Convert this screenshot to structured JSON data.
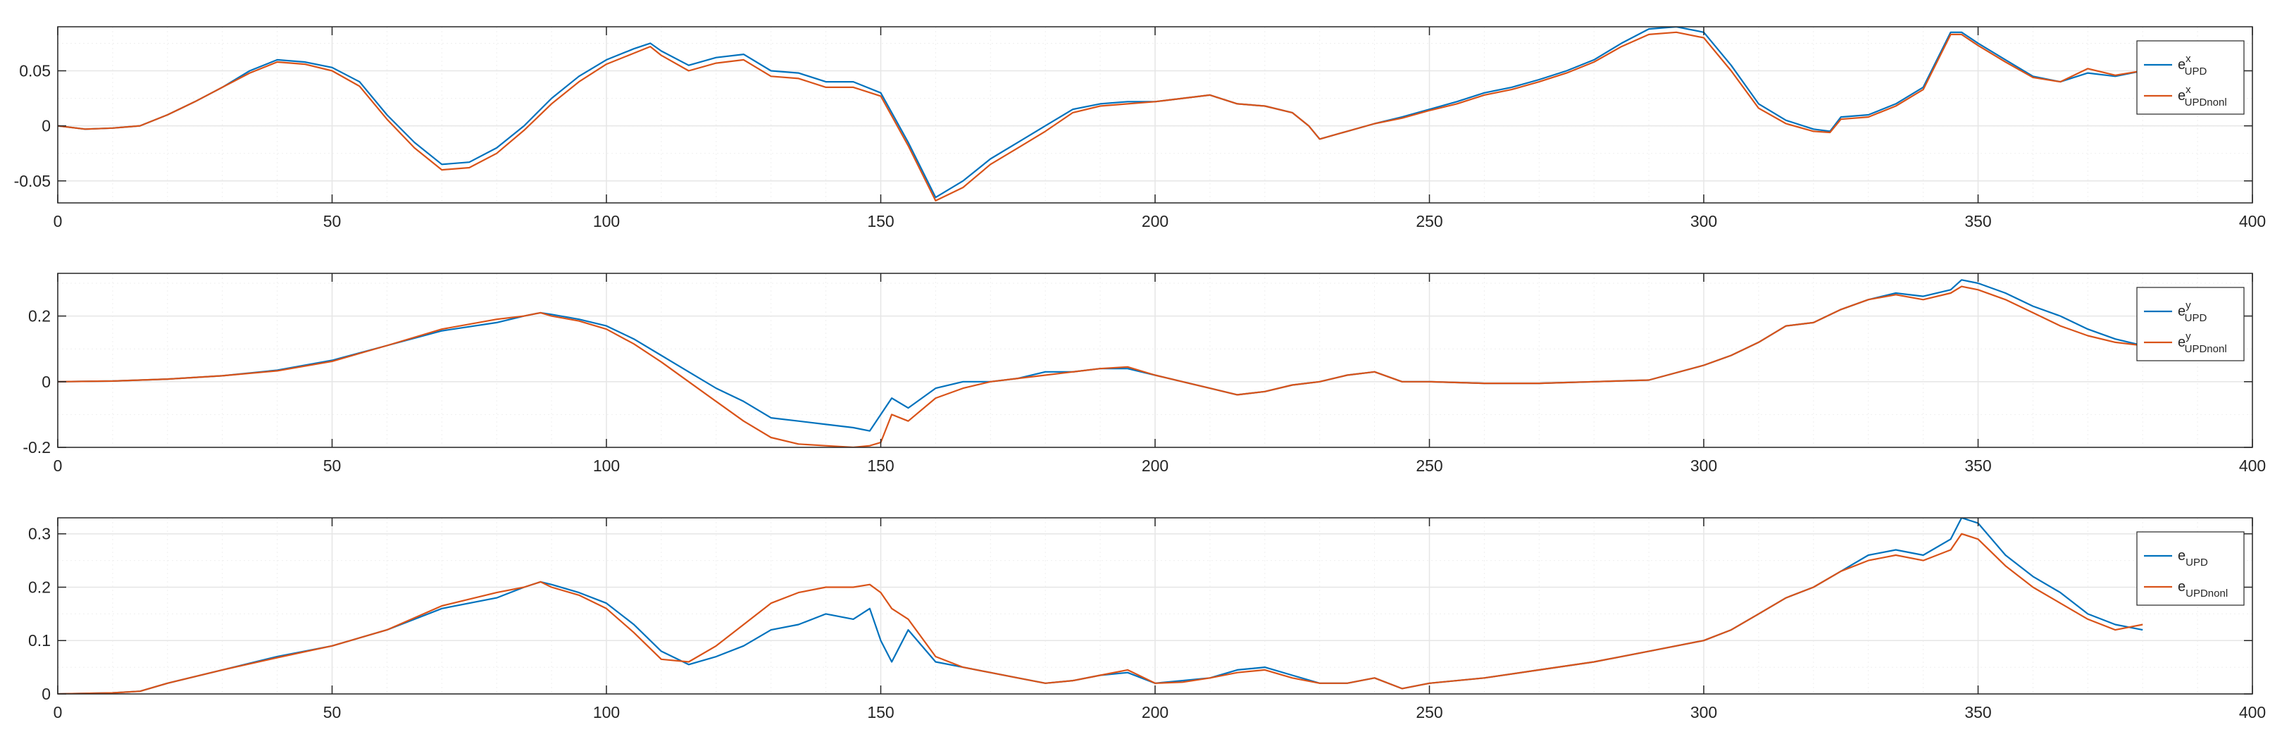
{
  "colors": {
    "series1": "#0072BD",
    "series2": "#D95319",
    "axis": "#262626",
    "grid": "#E6E6E6",
    "minor_grid": "#EFEFEF",
    "background": "#FFFFFF"
  },
  "chart_data": [
    {
      "type": "line",
      "title": "",
      "xlabel": "",
      "ylabel": "",
      "xlim": [
        0,
        400
      ],
      "ylim": [
        -0.07,
        0.09
      ],
      "xticks": [
        0,
        50,
        100,
        150,
        200,
        250,
        300,
        350,
        400
      ],
      "xtick_labels": [
        "0",
        "50",
        "100",
        "150",
        "200",
        "250",
        "300",
        "350",
        "400"
      ],
      "yticks": [
        -0.05,
        0,
        0.05
      ],
      "ytick_labels": [
        "-0.05",
        "0",
        "0.05"
      ],
      "grid": true,
      "legend_position": "top-right",
      "legend": [
        {
          "base": "e",
          "sup": "x",
          "sub": "UPD"
        },
        {
          "base": "e",
          "sup": "x",
          "sub": "UPDnonl"
        }
      ],
      "series": [
        {
          "x": [
            0,
            5,
            10,
            15,
            20,
            25,
            30,
            35,
            40,
            45,
            50,
            55,
            60,
            65,
            70,
            75,
            80,
            85,
            90,
            95,
            100,
            105,
            108,
            110,
            115,
            120,
            125,
            130,
            135,
            140,
            145,
            150,
            155,
            160,
            165,
            170,
            175,
            180,
            185,
            190,
            195,
            200,
            205,
            210,
            215,
            220,
            225,
            228,
            230,
            235,
            240,
            245,
            250,
            255,
            260,
            265,
            270,
            275,
            280,
            285,
            290,
            295,
            300,
            305,
            310,
            315,
            320,
            323,
            325,
            330,
            335,
            340,
            345,
            347,
            350,
            355,
            360,
            365,
            370,
            375,
            380
          ],
          "y": [
            0.0,
            -0.003,
            -0.002,
            0.0,
            0.01,
            0.022,
            0.035,
            0.05,
            0.06,
            0.058,
            0.053,
            0.04,
            0.01,
            -0.015,
            -0.035,
            -0.033,
            -0.02,
            0.0,
            0.025,
            0.045,
            0.06,
            0.07,
            0.075,
            0.068,
            0.055,
            0.062,
            0.065,
            0.05,
            0.048,
            0.04,
            0.04,
            0.03,
            -0.015,
            -0.065,
            -0.05,
            -0.03,
            -0.015,
            0.0,
            0.015,
            0.02,
            0.022,
            0.022,
            0.025,
            0.028,
            0.02,
            0.018,
            0.012,
            0.0,
            -0.012,
            -0.005,
            0.002,
            0.008,
            0.015,
            0.022,
            0.03,
            0.035,
            0.042,
            0.05,
            0.06,
            0.075,
            0.088,
            0.09,
            0.085,
            0.055,
            0.02,
            0.005,
            -0.003,
            -0.005,
            0.008,
            0.01,
            0.02,
            0.035,
            0.085,
            0.085,
            0.075,
            0.06,
            0.045,
            0.04,
            0.048,
            0.045,
            0.05
          ]
        },
        {
          "x": [
            0,
            5,
            10,
            15,
            20,
            25,
            30,
            35,
            40,
            45,
            50,
            55,
            60,
            65,
            70,
            75,
            80,
            85,
            90,
            95,
            100,
            105,
            108,
            110,
            115,
            120,
            125,
            130,
            135,
            140,
            145,
            150,
            155,
            160,
            165,
            170,
            175,
            180,
            185,
            190,
            195,
            200,
            205,
            210,
            215,
            220,
            225,
            228,
            230,
            235,
            240,
            245,
            250,
            255,
            260,
            265,
            270,
            275,
            280,
            285,
            290,
            295,
            300,
            305,
            310,
            315,
            320,
            323,
            325,
            330,
            335,
            340,
            345,
            347,
            350,
            355,
            360,
            365,
            370,
            375,
            380
          ],
          "y": [
            0.0,
            -0.003,
            -0.002,
            0.0,
            0.01,
            0.022,
            0.035,
            0.048,
            0.058,
            0.056,
            0.05,
            0.036,
            0.006,
            -0.02,
            -0.04,
            -0.038,
            -0.025,
            -0.004,
            0.02,
            0.04,
            0.056,
            0.066,
            0.072,
            0.064,
            0.05,
            0.057,
            0.06,
            0.045,
            0.043,
            0.035,
            0.035,
            0.027,
            -0.018,
            -0.068,
            -0.056,
            -0.035,
            -0.02,
            -0.005,
            0.012,
            0.018,
            0.02,
            0.022,
            0.025,
            0.028,
            0.02,
            0.018,
            0.012,
            0.0,
            -0.012,
            -0.005,
            0.002,
            0.007,
            0.014,
            0.02,
            0.028,
            0.033,
            0.04,
            0.048,
            0.058,
            0.072,
            0.083,
            0.085,
            0.08,
            0.05,
            0.016,
            0.002,
            -0.005,
            -0.006,
            0.006,
            0.008,
            0.018,
            0.033,
            0.083,
            0.083,
            0.073,
            0.058,
            0.044,
            0.04,
            0.052,
            0.046,
            0.05
          ]
        }
      ]
    },
    {
      "type": "line",
      "title": "",
      "xlabel": "",
      "ylabel": "",
      "xlim": [
        0,
        400
      ],
      "ylim": [
        -0.2,
        0.33
      ],
      "xticks": [
        0,
        50,
        100,
        150,
        200,
        250,
        300,
        350,
        400
      ],
      "xtick_labels": [
        "0",
        "50",
        "100",
        "150",
        "200",
        "250",
        "300",
        "350",
        "400"
      ],
      "yticks": [
        -0.2,
        0,
        0.2
      ],
      "ytick_labels": [
        "-0.2",
        "0",
        "0.2"
      ],
      "grid": true,
      "legend_position": "top-right",
      "legend": [
        {
          "base": "e",
          "sup": "y",
          "sub": "UPD"
        },
        {
          "base": "e",
          "sup": "y",
          "sub": "UPDnonl"
        }
      ],
      "series": [
        {
          "x": [
            0,
            10,
            20,
            30,
            40,
            50,
            60,
            70,
            80,
            85,
            88,
            90,
            95,
            100,
            105,
            110,
            115,
            120,
            125,
            130,
            135,
            140,
            145,
            148,
            150,
            152,
            155,
            160,
            165,
            170,
            175,
            180,
            185,
            190,
            195,
            200,
            205,
            210,
            215,
            220,
            225,
            230,
            235,
            240,
            245,
            250,
            260,
            270,
            280,
            290,
            300,
            305,
            310,
            315,
            320,
            325,
            330,
            335,
            340,
            345,
            347,
            350,
            355,
            360,
            365,
            370,
            375,
            380
          ],
          "y": [
            0.0,
            0.002,
            0.008,
            0.018,
            0.035,
            0.065,
            0.11,
            0.155,
            0.18,
            0.2,
            0.21,
            0.205,
            0.19,
            0.17,
            0.13,
            0.08,
            0.03,
            -0.02,
            -0.06,
            -0.11,
            -0.12,
            -0.13,
            -0.14,
            -0.15,
            -0.1,
            -0.05,
            -0.08,
            -0.02,
            0.0,
            0.0,
            0.01,
            0.03,
            0.03,
            0.04,
            0.04,
            0.02,
            0.0,
            -0.02,
            -0.04,
            -0.03,
            -0.01,
            0.0,
            0.02,
            0.03,
            0.0,
            0.0,
            -0.005,
            -0.005,
            0.0,
            0.005,
            0.05,
            0.08,
            0.12,
            0.17,
            0.18,
            0.22,
            0.25,
            0.27,
            0.26,
            0.28,
            0.31,
            0.3,
            0.27,
            0.23,
            0.2,
            0.16,
            0.13,
            0.11
          ]
        },
        {
          "x": [
            0,
            10,
            20,
            30,
            40,
            50,
            60,
            70,
            80,
            85,
            88,
            90,
            95,
            100,
            105,
            110,
            115,
            120,
            125,
            130,
            135,
            140,
            145,
            148,
            150,
            152,
            155,
            160,
            165,
            170,
            175,
            180,
            185,
            190,
            195,
            200,
            205,
            210,
            215,
            220,
            225,
            230,
            235,
            240,
            245,
            250,
            260,
            270,
            280,
            290,
            300,
            305,
            310,
            315,
            320,
            325,
            330,
            335,
            340,
            345,
            347,
            350,
            355,
            360,
            365,
            370,
            375,
            380
          ],
          "y": [
            0.0,
            0.002,
            0.008,
            0.018,
            0.033,
            0.062,
            0.11,
            0.16,
            0.19,
            0.2,
            0.21,
            0.2,
            0.185,
            0.16,
            0.115,
            0.06,
            0.0,
            -0.06,
            -0.12,
            -0.17,
            -0.19,
            -0.195,
            -0.2,
            -0.195,
            -0.185,
            -0.1,
            -0.12,
            -0.05,
            -0.02,
            0.0,
            0.01,
            0.02,
            0.03,
            0.04,
            0.045,
            0.02,
            0.0,
            -0.02,
            -0.04,
            -0.03,
            -0.01,
            0.0,
            0.02,
            0.03,
            0.0,
            0.0,
            -0.005,
            -0.005,
            0.0,
            0.005,
            0.05,
            0.08,
            0.12,
            0.17,
            0.18,
            0.22,
            0.25,
            0.265,
            0.25,
            0.27,
            0.29,
            0.28,
            0.25,
            0.21,
            0.17,
            0.14,
            0.12,
            0.11
          ]
        }
      ]
    },
    {
      "type": "line",
      "title": "",
      "xlabel": "",
      "ylabel": "",
      "xlim": [
        0,
        400
      ],
      "ylim": [
        0,
        0.33
      ],
      "xticks": [
        0,
        50,
        100,
        150,
        200,
        250,
        300,
        350,
        400
      ],
      "xtick_labels": [
        "0",
        "50",
        "100",
        "150",
        "200",
        "250",
        "300",
        "350",
        "400"
      ],
      "yticks": [
        0,
        0.1,
        0.2,
        0.3
      ],
      "ytick_labels": [
        "0",
        "0.1",
        "0.2",
        "0.3"
      ],
      "grid": true,
      "legend_position": "top-right",
      "legend": [
        {
          "base": "e",
          "sup": "",
          "sub": "UPD"
        },
        {
          "base": "e",
          "sup": "",
          "sub": "UPDnonl"
        }
      ],
      "series": [
        {
          "x": [
            0,
            10,
            15,
            20,
            30,
            40,
            50,
            60,
            70,
            80,
            85,
            88,
            90,
            95,
            100,
            105,
            110,
            115,
            120,
            125,
            130,
            135,
            140,
            145,
            148,
            150,
            152,
            155,
            160,
            165,
            170,
            175,
            180,
            185,
            190,
            195,
            200,
            205,
            210,
            215,
            220,
            225,
            230,
            235,
            240,
            245,
            250,
            260,
            270,
            280,
            290,
            300,
            305,
            310,
            315,
            320,
            325,
            330,
            335,
            340,
            345,
            347,
            350,
            355,
            360,
            365,
            370,
            375,
            380
          ],
          "y": [
            0.0,
            0.002,
            0.005,
            0.02,
            0.045,
            0.07,
            0.09,
            0.12,
            0.16,
            0.18,
            0.2,
            0.21,
            0.205,
            0.19,
            0.17,
            0.13,
            0.08,
            0.055,
            0.07,
            0.09,
            0.12,
            0.13,
            0.15,
            0.14,
            0.16,
            0.1,
            0.06,
            0.12,
            0.06,
            0.05,
            0.04,
            0.03,
            0.02,
            0.025,
            0.035,
            0.04,
            0.02,
            0.025,
            0.03,
            0.045,
            0.05,
            0.035,
            0.02,
            0.02,
            0.03,
            0.01,
            0.02,
            0.03,
            0.045,
            0.06,
            0.08,
            0.1,
            0.12,
            0.15,
            0.18,
            0.2,
            0.23,
            0.26,
            0.27,
            0.26,
            0.29,
            0.33,
            0.32,
            0.26,
            0.22,
            0.19,
            0.15,
            0.13,
            0.12
          ]
        },
        {
          "x": [
            0,
            10,
            15,
            20,
            30,
            40,
            50,
            60,
            70,
            80,
            85,
            88,
            90,
            95,
            100,
            105,
            110,
            115,
            120,
            125,
            130,
            135,
            140,
            145,
            148,
            150,
            152,
            155,
            160,
            165,
            170,
            175,
            180,
            185,
            190,
            195,
            200,
            205,
            210,
            215,
            220,
            225,
            230,
            235,
            240,
            245,
            250,
            260,
            270,
            280,
            290,
            300,
            305,
            310,
            315,
            320,
            325,
            330,
            335,
            340,
            345,
            347,
            350,
            355,
            360,
            365,
            370,
            375,
            380
          ],
          "y": [
            0.0,
            0.002,
            0.005,
            0.02,
            0.045,
            0.068,
            0.09,
            0.12,
            0.165,
            0.19,
            0.2,
            0.21,
            0.2,
            0.185,
            0.16,
            0.115,
            0.065,
            0.06,
            0.09,
            0.13,
            0.17,
            0.19,
            0.2,
            0.2,
            0.205,
            0.19,
            0.16,
            0.14,
            0.07,
            0.05,
            0.04,
            0.03,
            0.02,
            0.025,
            0.035,
            0.045,
            0.02,
            0.022,
            0.03,
            0.04,
            0.045,
            0.03,
            0.02,
            0.02,
            0.03,
            0.01,
            0.02,
            0.03,
            0.045,
            0.06,
            0.08,
            0.1,
            0.12,
            0.15,
            0.18,
            0.2,
            0.23,
            0.25,
            0.26,
            0.25,
            0.27,
            0.3,
            0.29,
            0.24,
            0.2,
            0.17,
            0.14,
            0.12,
            0.13
          ]
        }
      ]
    }
  ]
}
